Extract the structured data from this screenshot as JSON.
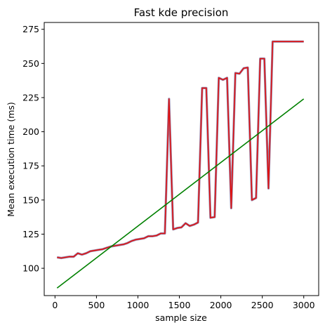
{
  "chart_data": {
    "type": "line",
    "title": "Fast kde precision",
    "xlabel": "sample size",
    "ylabel": "Mean execution time (ms)",
    "xlim": [
      -130,
      3180
    ],
    "ylim": [
      80,
      280
    ],
    "xticks": [
      0,
      500,
      1000,
      1500,
      2000,
      2500,
      3000
    ],
    "yticks": [
      100,
      125,
      150,
      175,
      200,
      225,
      250,
      275
    ],
    "grid": false,
    "series": [
      {
        "color": "#e01010",
        "shadow_color": "#6a5a8e",
        "x": [
          25,
          75,
          125,
          175,
          225,
          275,
          325,
          375,
          425,
          475,
          525,
          575,
          625,
          675,
          725,
          775,
          825,
          875,
          925,
          975,
          1025,
          1075,
          1125,
          1175,
          1225,
          1275,
          1325,
          1375,
          1425,
          1475,
          1525,
          1575,
          1625,
          1675,
          1725,
          1775,
          1825,
          1875,
          1925,
          1975,
          2025,
          2075,
          2125,
          2175,
          2225,
          2275,
          2325,
          2375,
          2425,
          2475,
          2525,
          2575,
          2625,
          2675,
          2725,
          2775,
          2825,
          2875,
          2925,
          2975,
          3000
        ],
        "y": [
          108,
          107.5,
          108,
          108.5,
          108.5,
          111,
          110,
          111,
          112.5,
          113,
          113.5,
          114,
          115,
          116,
          116.5,
          117,
          117.5,
          118.5,
          120,
          121,
          121.5,
          122,
          123.5,
          123.5,
          124,
          125.5,
          125.5,
          224,
          128.5,
          129.5,
          130,
          133,
          131,
          132,
          133.5,
          232,
          232,
          137,
          137.5,
          239.5,
          238,
          239.5,
          144,
          243,
          242.5,
          246.5,
          247,
          150,
          151.5,
          253.5,
          253.5,
          158.5,
          266,
          266,
          266,
          266,
          266,
          266,
          266,
          266,
          266
        ]
      },
      {
        "color": "#008000",
        "x": [
          25,
          3000
        ],
        "y": [
          85.5,
          224
        ]
      }
    ]
  }
}
